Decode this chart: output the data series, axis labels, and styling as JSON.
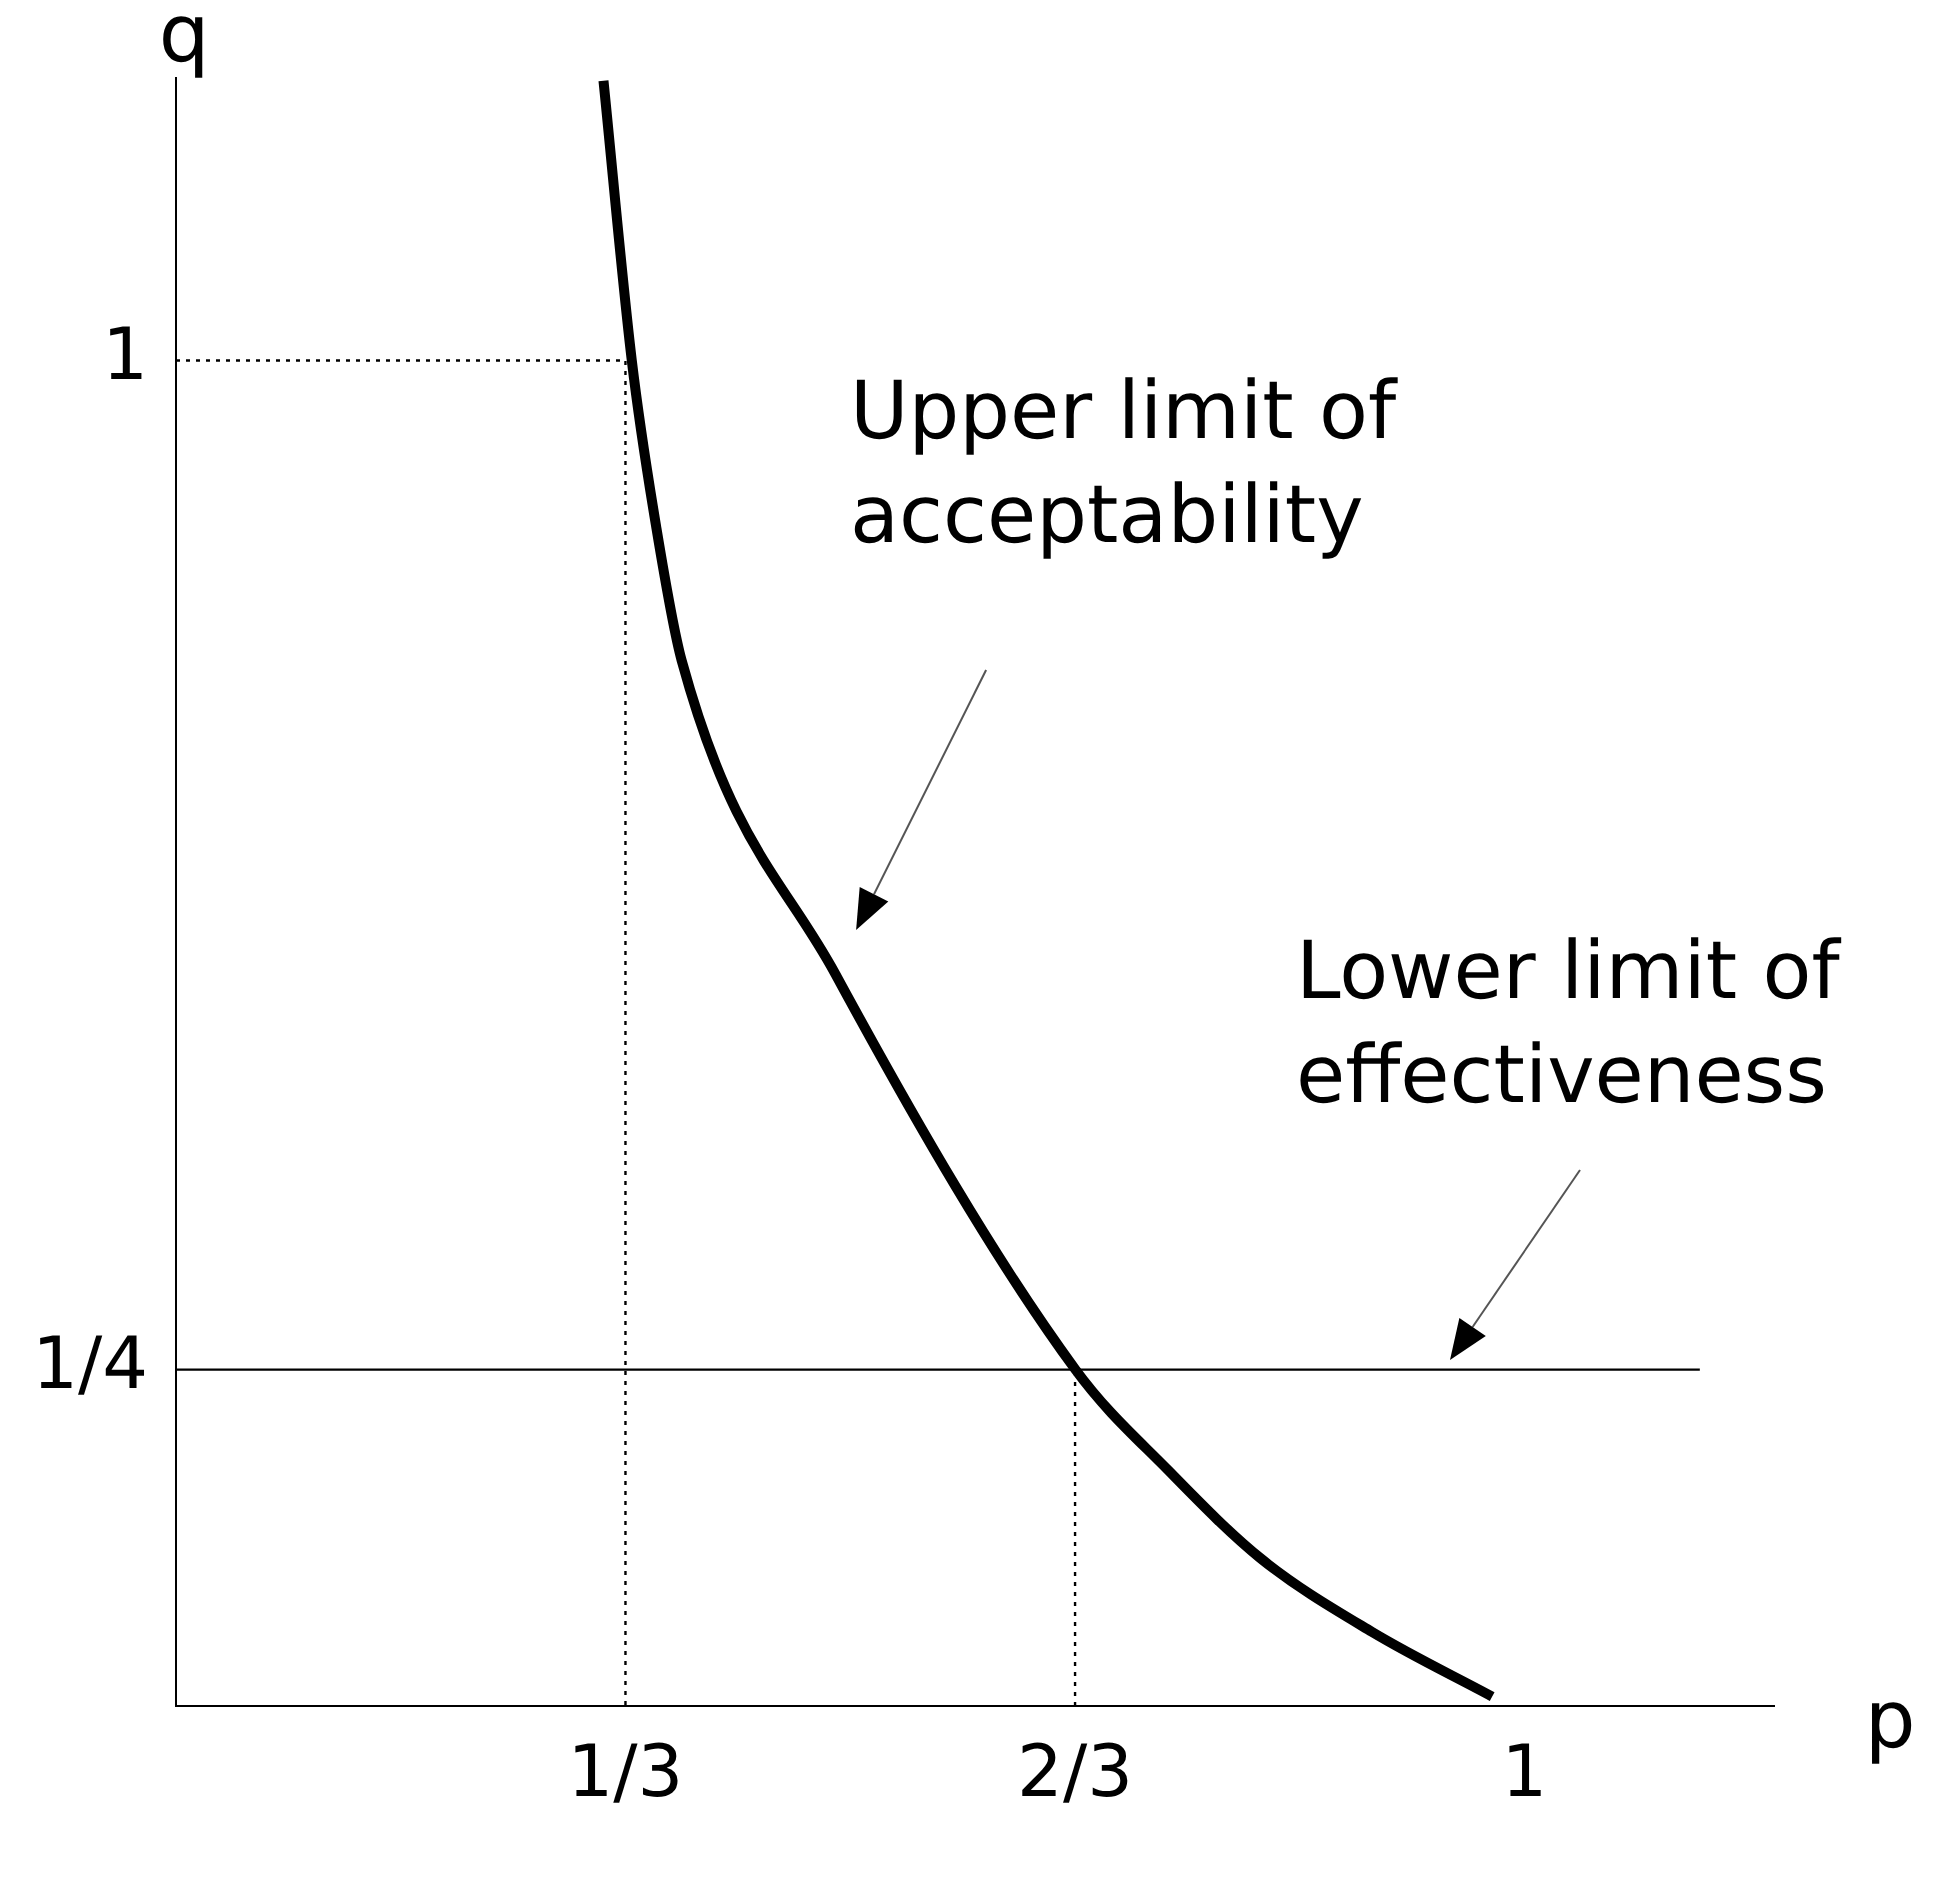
{
  "chart_data": {
    "type": "line",
    "xlabel": "p",
    "ylabel": "q",
    "xlim": [
      0,
      1.185
    ],
    "ylim": [
      0,
      1.21
    ],
    "xticks": [
      {
        "value": 0.3333,
        "label": "1/3"
      },
      {
        "value": 0.6667,
        "label": "2/3"
      },
      1
    ],
    "yticks": [
      {
        "value": 0.25,
        "label": "1/4"
      },
      1
    ],
    "grid": false,
    "legend": false,
    "marker": "none",
    "series": [
      {
        "color": "#000000",
        "line_style": "solid",
        "x": [
          0.317,
          0.338,
          0.356,
          0.375,
          0.489,
          0.667,
          0.736,
          0.804,
          0.887,
          0.976
        ],
        "values": [
          1.208,
          1.0,
          0.877,
          0.777,
          0.544,
          0.25,
          0.175,
          0.11,
          0.055,
          0.007
        ]
      },
      {
        "color": "#000000",
        "line_style": "solid",
        "x": [
          0,
          1.13
        ],
        "values": [
          0.25,
          0.25
        ]
      },
      {
        "color": "#000000",
        "line_style": "dotted",
        "x": [
          0,
          0.3333,
          0.3333
        ],
        "values": [
          1,
          1,
          0
        ]
      },
      {
        "color": "#000000",
        "line_style": "dotted",
        "x": [
          0.6667,
          0.6667
        ],
        "values": [
          0,
          0.25
        ]
      }
    ],
    "annotations": [
      "Upper limit of acceptability",
      "Lower limit of effectiveness"
    ]
  }
}
